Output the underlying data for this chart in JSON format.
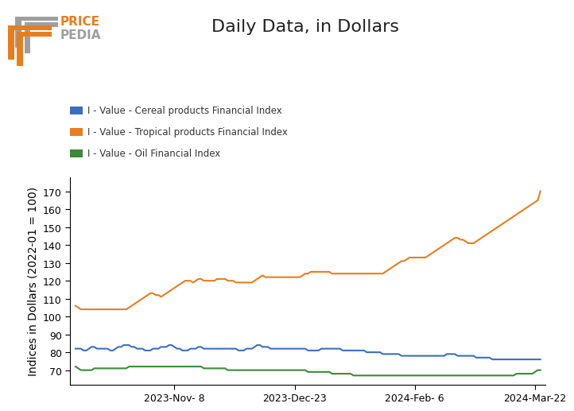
{
  "title": "Daily Data, in Dollars",
  "ylabel": "Indices in Dollars (2022-01 = 100)",
  "title_fontsize": 16,
  "ylabel_fontsize": 10,
  "ylim": [
    62,
    178
  ],
  "yticks": [
    70,
    80,
    90,
    100,
    110,
    120,
    130,
    140,
    150,
    160,
    170
  ],
  "background_color": "#ffffff",
  "legend_entries": [
    "I - Value - Cereal products Financial Index",
    "I - Value - Tropical products Financial Index",
    "I - Value - Oil Financial Index"
  ],
  "line_colors": [
    "#3c6ebf",
    "#e87d1e",
    "#3a8a3a"
  ],
  "line_width": 1.5,
  "cereal": [
    82,
    82,
    82,
    81,
    81,
    82,
    83,
    83,
    82,
    82,
    82,
    82,
    82,
    81,
    81,
    82,
    83,
    83,
    84,
    84,
    84,
    83,
    83,
    82,
    82,
    82,
    81,
    81,
    81,
    82,
    82,
    82,
    83,
    83,
    83,
    84,
    84,
    83,
    82,
    82,
    81,
    81,
    81,
    82,
    82,
    82,
    83,
    83,
    82,
    82,
    82,
    82,
    82,
    82,
    82,
    82,
    82,
    82,
    82,
    82,
    82,
    81,
    81,
    81,
    82,
    82,
    82,
    83,
    84,
    84,
    83,
    83,
    83,
    82,
    82,
    82,
    82,
    82,
    82,
    82,
    82,
    82,
    82,
    82,
    82,
    82,
    82,
    81,
    81,
    81,
    81,
    81,
    82,
    82,
    82,
    82,
    82,
    82,
    82,
    82,
    81,
    81,
    81,
    81,
    81,
    81,
    81,
    81,
    81,
    80,
    80,
    80,
    80,
    80,
    80,
    79,
    79,
    79,
    79,
    79,
    79,
    79,
    78,
    78,
    78,
    78,
    78,
    78,
    78,
    78,
    78,
    78,
    78,
    78,
    78,
    78,
    78,
    78,
    78,
    79,
    79,
    79,
    79,
    78,
    78,
    78,
    78,
    78,
    78,
    78,
    77,
    77,
    77,
    77,
    77,
    77,
    76,
    76,
    76,
    76,
    76,
    76,
    76,
    76,
    76,
    76,
    76,
    76,
    76,
    76,
    76,
    76,
    76,
    76,
    76
  ],
  "tropical": [
    106,
    105,
    104,
    104,
    104,
    104,
    104,
    104,
    104,
    104,
    104,
    104,
    104,
    104,
    104,
    104,
    104,
    104,
    104,
    104,
    105,
    106,
    107,
    108,
    109,
    110,
    111,
    112,
    113,
    113,
    112,
    112,
    111,
    112,
    113,
    114,
    115,
    116,
    117,
    118,
    119,
    120,
    120,
    120,
    119,
    120,
    121,
    121,
    120,
    120,
    120,
    120,
    120,
    121,
    121,
    121,
    121,
    120,
    120,
    120,
    119,
    119,
    119,
    119,
    119,
    119,
    119,
    120,
    121,
    122,
    123,
    122,
    122,
    122,
    122,
    122,
    122,
    122,
    122,
    122,
    122,
    122,
    122,
    122,
    122,
    123,
    124,
    124,
    125,
    125,
    125,
    125,
    125,
    125,
    125,
    125,
    124,
    124,
    124,
    124,
    124,
    124,
    124,
    124,
    124,
    124,
    124,
    124,
    124,
    124,
    124,
    124,
    124,
    124,
    124,
    124,
    125,
    126,
    127,
    128,
    129,
    130,
    131,
    131,
    132,
    133,
    133,
    133,
    133,
    133,
    133,
    133,
    134,
    135,
    136,
    137,
    138,
    139,
    140,
    141,
    142,
    143,
    144,
    144,
    143,
    143,
    142,
    141,
    141,
    141,
    142,
    143,
    144,
    145,
    146,
    147,
    148,
    149,
    150,
    151,
    152,
    153,
    154,
    155,
    156,
    157,
    158,
    159,
    160,
    161,
    162,
    163,
    164,
    165,
    170
  ],
  "oil": [
    72,
    71,
    70,
    70,
    70,
    70,
    70,
    71,
    71,
    71,
    71,
    71,
    71,
    71,
    71,
    71,
    71,
    71,
    71,
    71,
    72,
    72,
    72,
    72,
    72,
    72,
    72,
    72,
    72,
    72,
    72,
    72,
    72,
    72,
    72,
    72,
    72,
    72,
    72,
    72,
    72,
    72,
    72,
    72,
    72,
    72,
    72,
    72,
    71,
    71,
    71,
    71,
    71,
    71,
    71,
    71,
    71,
    70,
    70,
    70,
    70,
    70,
    70,
    70,
    70,
    70,
    70,
    70,
    70,
    70,
    70,
    70,
    70,
    70,
    70,
    70,
    70,
    70,
    70,
    70,
    70,
    70,
    70,
    70,
    70,
    70,
    70,
    69,
    69,
    69,
    69,
    69,
    69,
    69,
    69,
    69,
    68,
    68,
    68,
    68,
    68,
    68,
    68,
    68,
    67,
    67,
    67,
    67,
    67,
    67,
    67,
    67,
    67,
    67,
    67,
    67,
    67,
    67,
    67,
    67,
    67,
    67,
    67,
    67,
    67,
    67,
    67,
    67,
    67,
    67,
    67,
    67,
    67,
    67,
    67,
    67,
    67,
    67,
    67,
    67,
    67,
    67,
    67,
    67,
    67,
    67,
    67,
    67,
    67,
    67,
    67,
    67,
    67,
    67,
    67,
    67,
    67,
    67,
    67,
    67,
    67,
    67,
    67,
    67,
    67,
    68,
    68,
    68,
    68,
    68,
    68,
    68,
    69,
    70,
    70
  ],
  "xtick_dates": [
    "2023-Nov- 8",
    "2023-Dec-23",
    "2024-Feb- 6",
    "2024-Mar-22"
  ],
  "xtick_positions": [
    37,
    82,
    127,
    172
  ],
  "logo_orange": "#e87d1e",
  "logo_gray": "#9e9e9e",
  "text_color": "#333333"
}
